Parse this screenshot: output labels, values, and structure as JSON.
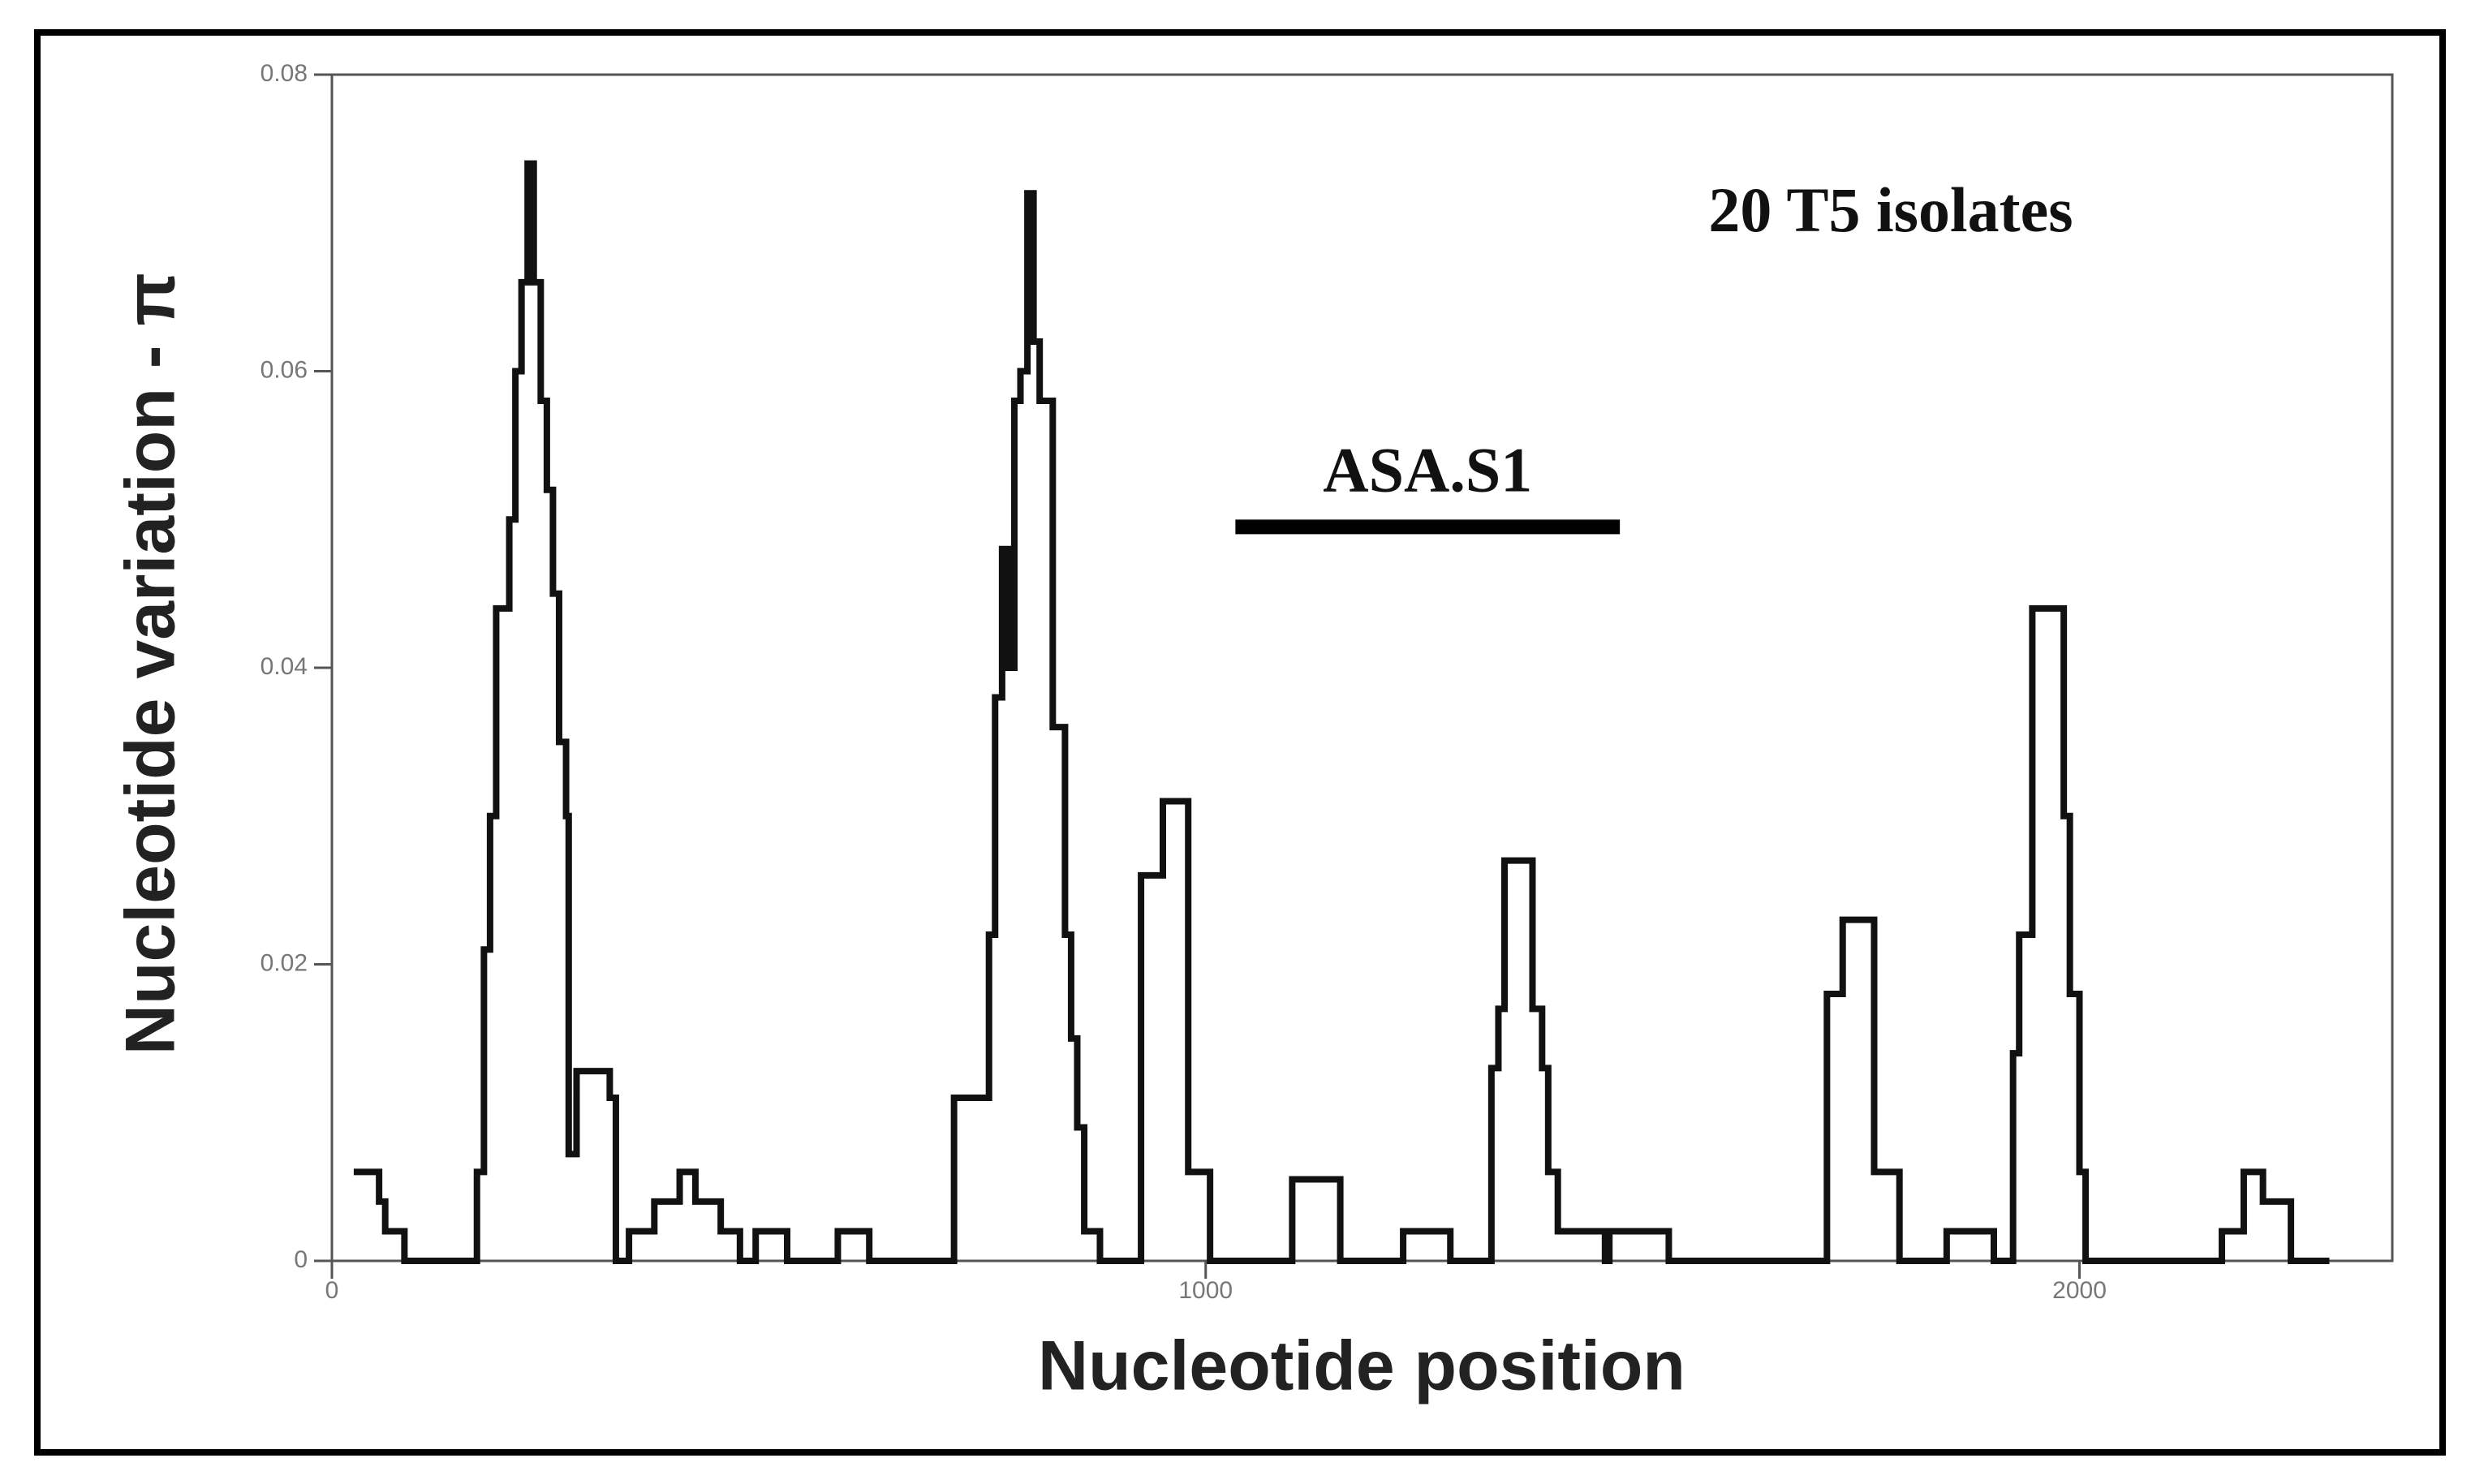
{
  "chart_data": {
    "type": "step",
    "x_label": "Nucleotide position",
    "y_label": "Nucleotide variation - π",
    "annotation": "20 T5 isolates",
    "region": {
      "label": "ASA.S1",
      "x": [
        1034,
        1474
      ],
      "y": 0.0495
    },
    "color": "#111111",
    "xlim": [
      0,
      2358
    ],
    "ylim": [
      0,
      0.08
    ],
    "xticks": [
      0,
      1000,
      2000
    ],
    "yticks": [
      0,
      0.02,
      0.04,
      0.06,
      0.08
    ],
    "x": [
      25,
      54,
      61,
      83,
      166,
      174,
      181,
      188,
      203,
      210,
      217,
      224,
      231,
      239,
      246,
      253,
      260,
      268,
      271,
      280,
      318,
      325,
      340,
      369,
      398,
      416,
      445,
      467,
      485,
      521,
      579,
      615,
      712,
      752,
      759,
      767,
      774,
      781,
      788,
      796,
      803,
      810,
      825,
      839,
      846,
      853,
      861,
      879,
      926,
      951,
      980,
      1005,
      1099,
      1154,
      1226,
      1280,
      1327,
      1335,
      1342,
      1374,
      1385,
      1392,
      1403,
      1457,
      1462,
      1476,
      1530,
      1711,
      1729,
      1765,
      1794,
      1848,
      1902,
      1924,
      1931,
      1946,
      1982,
      1989,
      2000,
      2007,
      2163,
      2188,
      2210,
      2242,
      2286
    ],
    "values": [
      0.006,
      0.004,
      0.002,
      0,
      0.006,
      0.021,
      0.03,
      0.044,
      0.05,
      0.06,
      0.066,
      0.074,
      0.066,
      0.058,
      0.052,
      0.045,
      0.035,
      0.03,
      0.0072,
      0.0128,
      0.011,
      0,
      0.002,
      0.004,
      0.006,
      0.004,
      0.002,
      0,
      0.002,
      0,
      0.002,
      0,
      0.011,
      0.022,
      0.038,
      0.048,
      0.04,
      0.058,
      0.06,
      0.072,
      0.062,
      0.058,
      0.036,
      0.022,
      0.015,
      0.009,
      0.002,
      0,
      0.026,
      0.031,
      0.006,
      0,
      0.0055,
      0,
      0.002,
      0,
      0.013,
      0.017,
      0.027,
      0.017,
      0.013,
      0.006,
      0.002,
      0,
      0.002,
      0.002,
      0,
      0.018,
      0.023,
      0.006,
      0,
      0.002,
      0,
      0.014,
      0.022,
      0.044,
      0.03,
      0.018,
      0.006,
      0,
      0.002,
      0.006,
      0.004,
      0,
      0
    ]
  }
}
